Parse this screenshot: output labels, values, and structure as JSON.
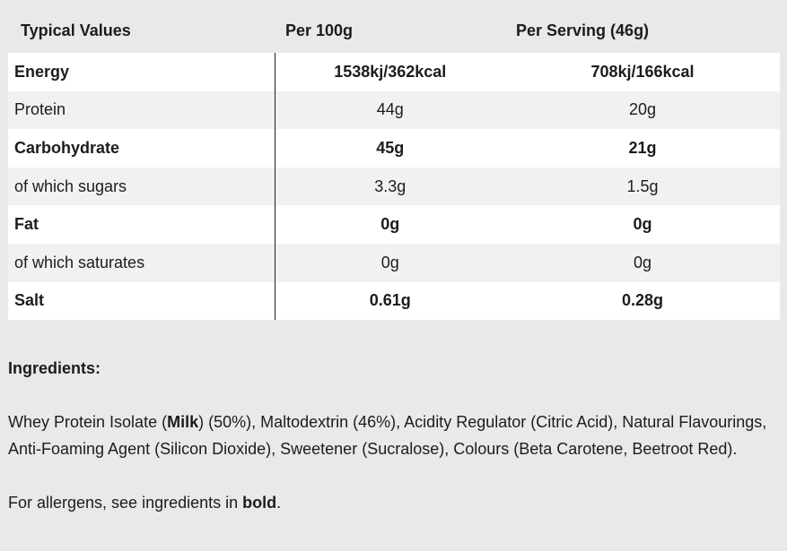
{
  "table": {
    "headers": [
      "Typical Values",
      "Per 100g",
      "Per Serving (46g)"
    ],
    "rows": [
      {
        "name": "Energy",
        "per100": "1538kj/362kcal",
        "serving": "708kj/166kcal",
        "bold": true
      },
      {
        "name": "Protein",
        "per100": "44g",
        "serving": "20g",
        "bold": false
      },
      {
        "name": "Carbohydrate",
        "per100": "45g",
        "serving": "21g",
        "bold": true
      },
      {
        "name": "of which sugars",
        "per100": "3.3g",
        "serving": "1.5g",
        "bold": false
      },
      {
        "name": "Fat",
        "per100": "0g",
        "serving": "0g",
        "bold": true
      },
      {
        "name": "of which saturates",
        "per100": "0g",
        "serving": "0g",
        "bold": false
      },
      {
        "name": "Salt",
        "per100": "0.61g",
        "serving": "0.28g",
        "bold": true
      }
    ]
  },
  "ingredients": {
    "title": "Ingredients:",
    "text_before": "Whey Protein Isolate (",
    "text_bold": "Milk",
    "text_after": ") (50%), Maltodextrin (46%), Acidity Regulator (Citric Acid), Natural Flavourings, Anti-Foaming Agent (Silicon Dioxide), Sweetener (Sucralose), Colours (Beta Carotene, Beetroot Red).",
    "allergen_before": "For allergens, see ingredients in ",
    "allergen_bold": "bold",
    "allergen_after": "."
  }
}
